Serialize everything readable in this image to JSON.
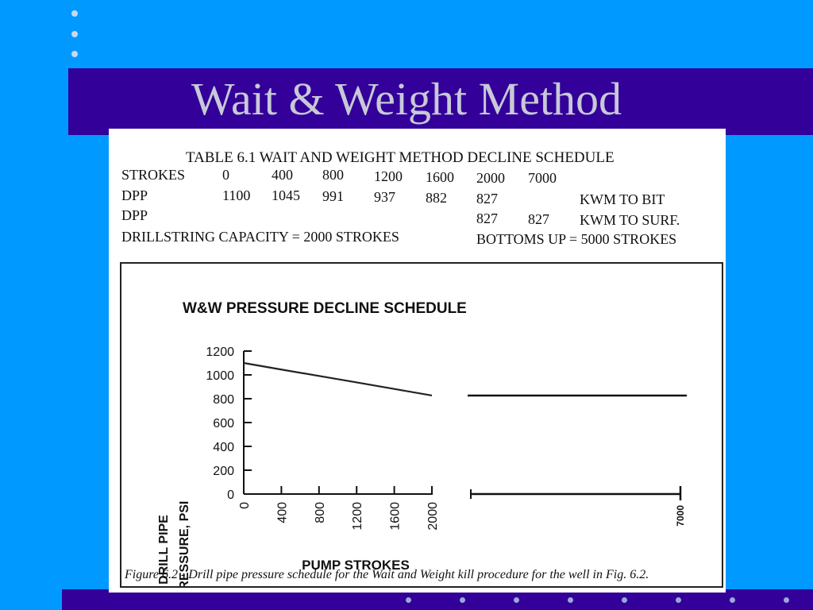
{
  "slide": {
    "title": "Wait & Weight Method"
  },
  "table": {
    "title": "TABLE 6.1 WAIT AND WEIGHT METHOD DECLINE SCHEDULE",
    "strokes_label": "STROKES",
    "strokes": [
      "0",
      "400",
      "800",
      "1200",
      "1600",
      "2000",
      "7000"
    ],
    "dpp1_label": "DPP",
    "dpp1": [
      "1100",
      "1045",
      "991",
      "937",
      "882",
      "827"
    ],
    "dpp1_note": "KWM TO BIT",
    "dpp2_label": "DPP",
    "dpp2": [
      "827",
      "827"
    ],
    "dpp2_note": "KWM TO SURF.",
    "capacity": "DRILLSTRING CAPACITY = 2000 STROKES",
    "bottoms_up": "BOTTOMS UP = 5000 STROKES"
  },
  "chart_data": {
    "type": "line",
    "title": "W&W PRESSURE DECLINE SCHEDULE",
    "ylabel_line1": "DRILL PIPE",
    "ylabel_line2": "PRESSURE, PSI",
    "xlabel": "PUMP STROKES",
    "yticks": [
      "0",
      "200",
      "400",
      "600",
      "800",
      "1000",
      "1200"
    ],
    "xticks": [
      "0",
      "400",
      "800",
      "1200",
      "1600",
      "2000"
    ],
    "x_end_label": "7000",
    "ylim": [
      0,
      1200
    ],
    "series": [
      {
        "x": [
          0,
          400,
          800,
          1200,
          1600,
          2000,
          7000
        ],
        "values": [
          1100,
          1045,
          991,
          937,
          882,
          827,
          827
        ]
      }
    ]
  },
  "caption": "Figure 6.2 - Drill pipe pressure schedule for the Wait and Weight kill procedure for the well in Fig. 6.2.",
  "colors": {
    "background": "#0099ff",
    "band": "#330099",
    "title_text": "#c8c8d8"
  }
}
